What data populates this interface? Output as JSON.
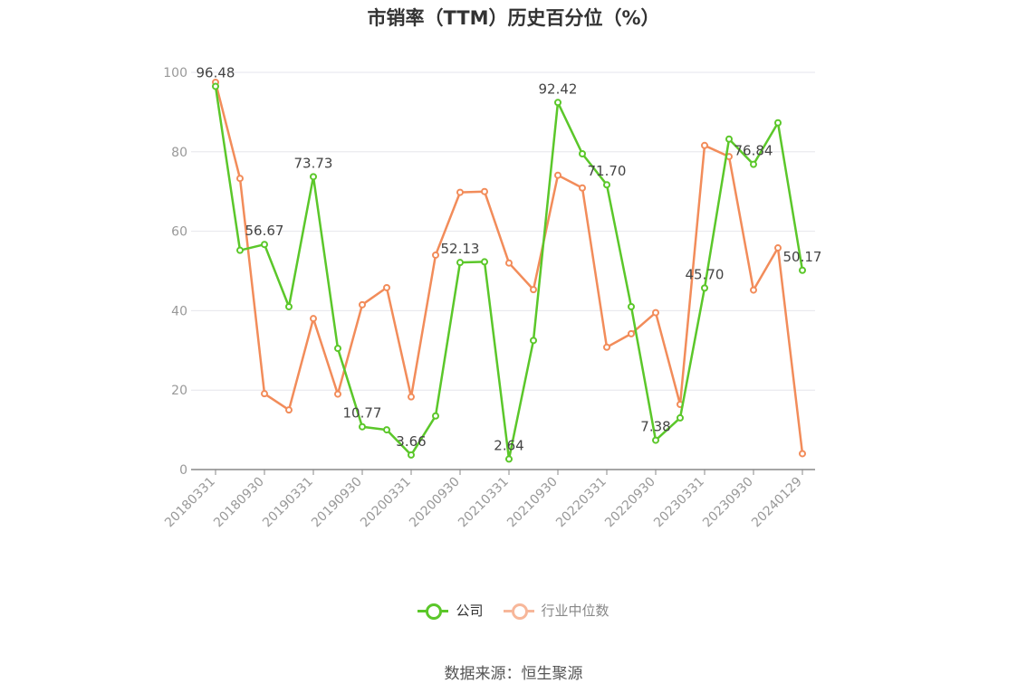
{
  "title": "市销率（TTM）历史百分位（%）",
  "source": "数据来源：恒生聚源",
  "colors": {
    "company": "#5bc72a",
    "industry": "#f28c5a",
    "industry_legend": "#f7b79a",
    "grid": "#e6e6ec",
    "axis": "#888888"
  },
  "chart_data": {
    "type": "line",
    "title": "市销率（TTM）历史百分位（%）",
    "ylim": [
      0,
      100
    ],
    "y_ticks": [
      0,
      20,
      40,
      60,
      80,
      100
    ],
    "grid": true,
    "legend_position": "bottom",
    "x_tick_labels": [
      "20180331",
      "20180930",
      "20190331",
      "20190930",
      "20200331",
      "20200930",
      "20210331",
      "20210930",
      "20220331",
      "20220930",
      "20230331",
      "20230930",
      "20240129"
    ],
    "x": [
      "20180331",
      "20180630",
      "20180930",
      "20181231",
      "20190331",
      "20190630",
      "20190930",
      "20191231",
      "20200331",
      "20200630",
      "20200930",
      "20201231",
      "20210331",
      "20210630",
      "20210930",
      "20211231",
      "20220331",
      "20220630",
      "20220930",
      "20221231",
      "20230331",
      "20230630",
      "20230930",
      "20231231",
      "20240129"
    ],
    "series": [
      {
        "name": "公司",
        "values": [
          96.48,
          55.2,
          56.67,
          41.0,
          73.73,
          30.5,
          10.77,
          10.0,
          3.66,
          13.5,
          52.13,
          52.3,
          2.64,
          32.5,
          92.42,
          79.5,
          71.7,
          41.0,
          7.38,
          13.0,
          45.7,
          83.2,
          76.84,
          87.3,
          50.17
        ],
        "labeled_values": [
          {
            "index": 0,
            "label": "96.48"
          },
          {
            "index": 2,
            "label": "56.67"
          },
          {
            "index": 4,
            "label": "73.73"
          },
          {
            "index": 6,
            "label": "10.77"
          },
          {
            "index": 8,
            "label": "3.66"
          },
          {
            "index": 10,
            "label": "52.13"
          },
          {
            "index": 12,
            "label": "2.64"
          },
          {
            "index": 14,
            "label": "92.42"
          },
          {
            "index": 16,
            "label": "71.70"
          },
          {
            "index": 18,
            "label": "7.38"
          },
          {
            "index": 20,
            "label": "45.70"
          },
          {
            "index": 22,
            "label": "76.84"
          },
          {
            "index": 24,
            "label": "50.17"
          }
        ]
      },
      {
        "name": "行业中位数",
        "values": [
          97.5,
          73.3,
          19.1,
          15.0,
          38.0,
          19.0,
          41.5,
          45.8,
          18.3,
          54.0,
          69.8,
          70.0,
          52.0,
          45.3,
          74.1,
          70.9,
          30.8,
          34.2,
          39.5,
          16.4,
          81.6,
          78.8,
          45.2,
          55.8,
          4.0
        ]
      }
    ]
  }
}
